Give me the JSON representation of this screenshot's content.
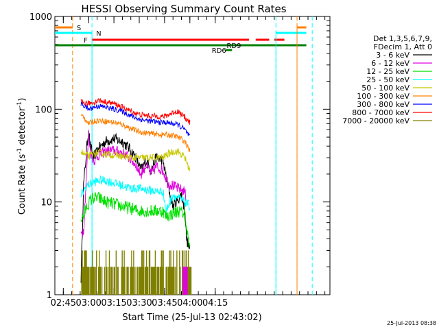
{
  "chart_data": {
    "type": "line",
    "title": "HESSI Observing Summary Count Rates",
    "xlabel": "Start Time (25-Jul-13 02:43:02)",
    "ylabel_main": "Count Rate (s",
    "ylabel_sup1": "-1",
    "ylabel_mid": " detector",
    "ylabel_sup2": "-1",
    "ylabel_end": ")",
    "yscale": "log",
    "ylim": [
      1,
      1000
    ],
    "xlim_minutes": [
      40,
      203
    ],
    "x_ticks": [
      {
        "min": 45,
        "label": "02:45"
      },
      {
        "min": 60,
        "label": "03:00"
      },
      {
        "min": 75,
        "label": "03:15"
      },
      {
        "min": 90,
        "label": "03:30"
      },
      {
        "min": 105,
        "label": "03:45"
      },
      {
        "min": 120,
        "label": "04:00"
      },
      {
        "min": 135,
        "label": "04:15"
      }
    ],
    "y_ticks": [
      {
        "v": 1,
        "label": "1"
      },
      {
        "v": 10,
        "label": "10"
      },
      {
        "v": 100,
        "label": "100"
      },
      {
        "v": 1000,
        "label": "1000"
      }
    ],
    "legend_header": [
      "Det 1,3,5,6,7,9,",
      "FDecim 1, Att 0"
    ],
    "series": [
      {
        "name": "3 - 6 keV",
        "color": "#000000",
        "points": [
          [
            55.5,
            1.5
          ],
          [
            57,
            15
          ],
          [
            59,
            40
          ],
          [
            60,
            62
          ],
          [
            61,
            40
          ],
          [
            63,
            30
          ],
          [
            66,
            38
          ],
          [
            70,
            45
          ],
          [
            75,
            48
          ],
          [
            80,
            45
          ],
          [
            84,
            38
          ],
          [
            88,
            30
          ],
          [
            91,
            22
          ],
          [
            94,
            28
          ],
          [
            97,
            22
          ],
          [
            100,
            30
          ],
          [
            104,
            28
          ],
          [
            107,
            15
          ],
          [
            110,
            9
          ],
          [
            112,
            10
          ],
          [
            115,
            12
          ],
          [
            117,
            8
          ],
          [
            118,
            4
          ],
          [
            120,
            3
          ]
        ]
      },
      {
        "name": "6 - 12 keV",
        "color": "#e000e0",
        "points": [
          [
            55.5,
            4.5
          ],
          [
            57,
            5
          ],
          [
            59,
            25
          ],
          [
            60,
            55
          ],
          [
            61,
            35
          ],
          [
            63,
            28
          ],
          [
            66,
            32
          ],
          [
            70,
            35
          ],
          [
            75,
            36
          ],
          [
            80,
            34
          ],
          [
            84,
            30
          ],
          [
            88,
            25
          ],
          [
            91,
            20
          ],
          [
            94,
            25
          ],
          [
            97,
            20
          ],
          [
            100,
            24
          ],
          [
            104,
            22
          ],
          [
            107,
            16
          ],
          [
            110,
            15
          ],
          [
            113,
            14
          ],
          [
            117,
            13
          ],
          [
            118,
            10
          ]
        ]
      },
      {
        "name": "12 - 25 keV",
        "color": "#00e000",
        "points": [
          [
            55.5,
            6.5
          ],
          [
            57,
            7
          ],
          [
            59,
            9
          ],
          [
            62,
            11
          ],
          [
            66,
            11
          ],
          [
            70,
            10
          ],
          [
            75,
            9.5
          ],
          [
            80,
            9
          ],
          [
            85,
            8.5
          ],
          [
            90,
            8
          ],
          [
            95,
            8
          ],
          [
            100,
            8
          ],
          [
            104,
            8
          ],
          [
            106,
            7
          ],
          [
            110,
            7.5
          ],
          [
            113,
            8
          ],
          [
            117,
            7.5
          ],
          [
            120,
            3
          ]
        ]
      },
      {
        "name": "25 - 50 keV",
        "color": "#00ffff",
        "points": [
          [
            55.5,
            12
          ],
          [
            57,
            13
          ],
          [
            59,
            15
          ],
          [
            62,
            16
          ],
          [
            66,
            17
          ],
          [
            70,
            17
          ],
          [
            75,
            16
          ],
          [
            80,
            15
          ],
          [
            85,
            14
          ],
          [
            90,
            14
          ],
          [
            95,
            13.5
          ],
          [
            100,
            13
          ],
          [
            104,
            13
          ],
          [
            106,
            8
          ],
          [
            110,
            12
          ],
          [
            113,
            11
          ],
          [
            117,
            10
          ],
          [
            120,
            9
          ]
        ]
      },
      {
        "name": "50 - 100 keV",
        "color": "#c8c800",
        "points": [
          [
            55.5,
            35
          ],
          [
            57,
            33
          ],
          [
            60,
            31
          ],
          [
            63,
            33
          ],
          [
            66,
            34
          ],
          [
            70,
            33
          ],
          [
            75,
            32
          ],
          [
            80,
            31
          ],
          [
            85,
            30
          ],
          [
            90,
            30
          ],
          [
            95,
            30
          ],
          [
            100,
            30
          ],
          [
            104,
            30
          ],
          [
            106,
            32
          ],
          [
            110,
            35
          ],
          [
            113,
            35
          ],
          [
            117,
            30
          ],
          [
            120,
            22
          ]
        ]
      },
      {
        "name": "100 - 300 keV",
        "color": "#ff8000",
        "points": [
          [
            55.5,
            85
          ],
          [
            57,
            83
          ],
          [
            60,
            70
          ],
          [
            63,
            74
          ],
          [
            66,
            76
          ],
          [
            70,
            74
          ],
          [
            75,
            72
          ],
          [
            80,
            68
          ],
          [
            85,
            62
          ],
          [
            90,
            57
          ],
          [
            95,
            55
          ],
          [
            100,
            54
          ],
          [
            104,
            53
          ],
          [
            106,
            53
          ],
          [
            110,
            52
          ],
          [
            113,
            50
          ],
          [
            117,
            45
          ],
          [
            120,
            35
          ]
        ]
      },
      {
        "name": "300 - 800 keV",
        "color": "#0000ff",
        "points": [
          [
            55.5,
            115
          ],
          [
            57,
            110
          ],
          [
            60,
            100
          ],
          [
            63,
            105
          ],
          [
            66,
            108
          ],
          [
            70,
            105
          ],
          [
            75,
            100
          ],
          [
            80,
            95
          ],
          [
            85,
            85
          ],
          [
            90,
            78
          ],
          [
            95,
            75
          ],
          [
            100,
            73
          ],
          [
            104,
            72
          ],
          [
            106,
            72
          ],
          [
            110,
            70
          ],
          [
            113,
            68
          ],
          [
            117,
            60
          ],
          [
            120,
            50
          ]
        ]
      },
      {
        "name": "800 - 7000 keV",
        "color": "#ff0000",
        "points": [
          [
            55.5,
            120
          ],
          [
            57,
            118
          ],
          [
            60,
            115
          ],
          [
            63,
            118
          ],
          [
            66,
            125
          ],
          [
            70,
            120
          ],
          [
            75,
            115
          ],
          [
            80,
            105
          ],
          [
            85,
            95
          ],
          [
            90,
            88
          ],
          [
            95,
            85
          ],
          [
            100,
            84
          ],
          [
            104,
            83
          ],
          [
            106,
            85
          ],
          [
            110,
            92
          ],
          [
            113,
            95
          ],
          [
            117,
            82
          ],
          [
            120,
            72
          ]
        ]
      },
      {
        "name": "7000 - 20000 keV",
        "color": "#808000",
        "points": []
      }
    ],
    "annotations": [
      {
        "text": "S",
        "color": "#ff8000"
      },
      {
        "text": "N",
        "color": "#00ffff"
      },
      {
        "text": "F",
        "color": "#ff0000"
      },
      {
        "text": "RD9",
        "color": "#008000"
      },
      {
        "text": "RD6",
        "color": "#008000"
      }
    ],
    "bars": [
      {
        "name": "S",
        "color": "#ff8000",
        "segments": [
          [
            40,
            50.5
          ],
          [
            183.5,
            189
          ]
        ]
      },
      {
        "name": "N",
        "color": "#00ffff",
        "segments": [
          [
            40,
            62
          ],
          [
            171,
            189
          ]
        ]
      },
      {
        "name": "F",
        "color": "#ff0000",
        "segments": [
          [
            62,
            155
          ],
          [
            159,
            167
          ],
          [
            170,
            176
          ]
        ]
      },
      {
        "name": "RD9",
        "color": "#008000",
        "segments": [
          [
            40,
            189
          ]
        ]
      },
      {
        "name": "RD6",
        "color": "#008000",
        "segments": [
          [
            141,
            145
          ]
        ]
      }
    ],
    "vlines": [
      {
        "min": 50.5,
        "color": "#ff8000"
      },
      {
        "min": 62,
        "color": "#00ffff"
      },
      {
        "min": 171,
        "color": "#00ffff"
      },
      {
        "min": 183.5,
        "color": "#ff8000"
      },
      {
        "min": 192.5,
        "color": "#00ffff"
      }
    ],
    "footer_date": "25-Jul-2013 08:38"
  }
}
